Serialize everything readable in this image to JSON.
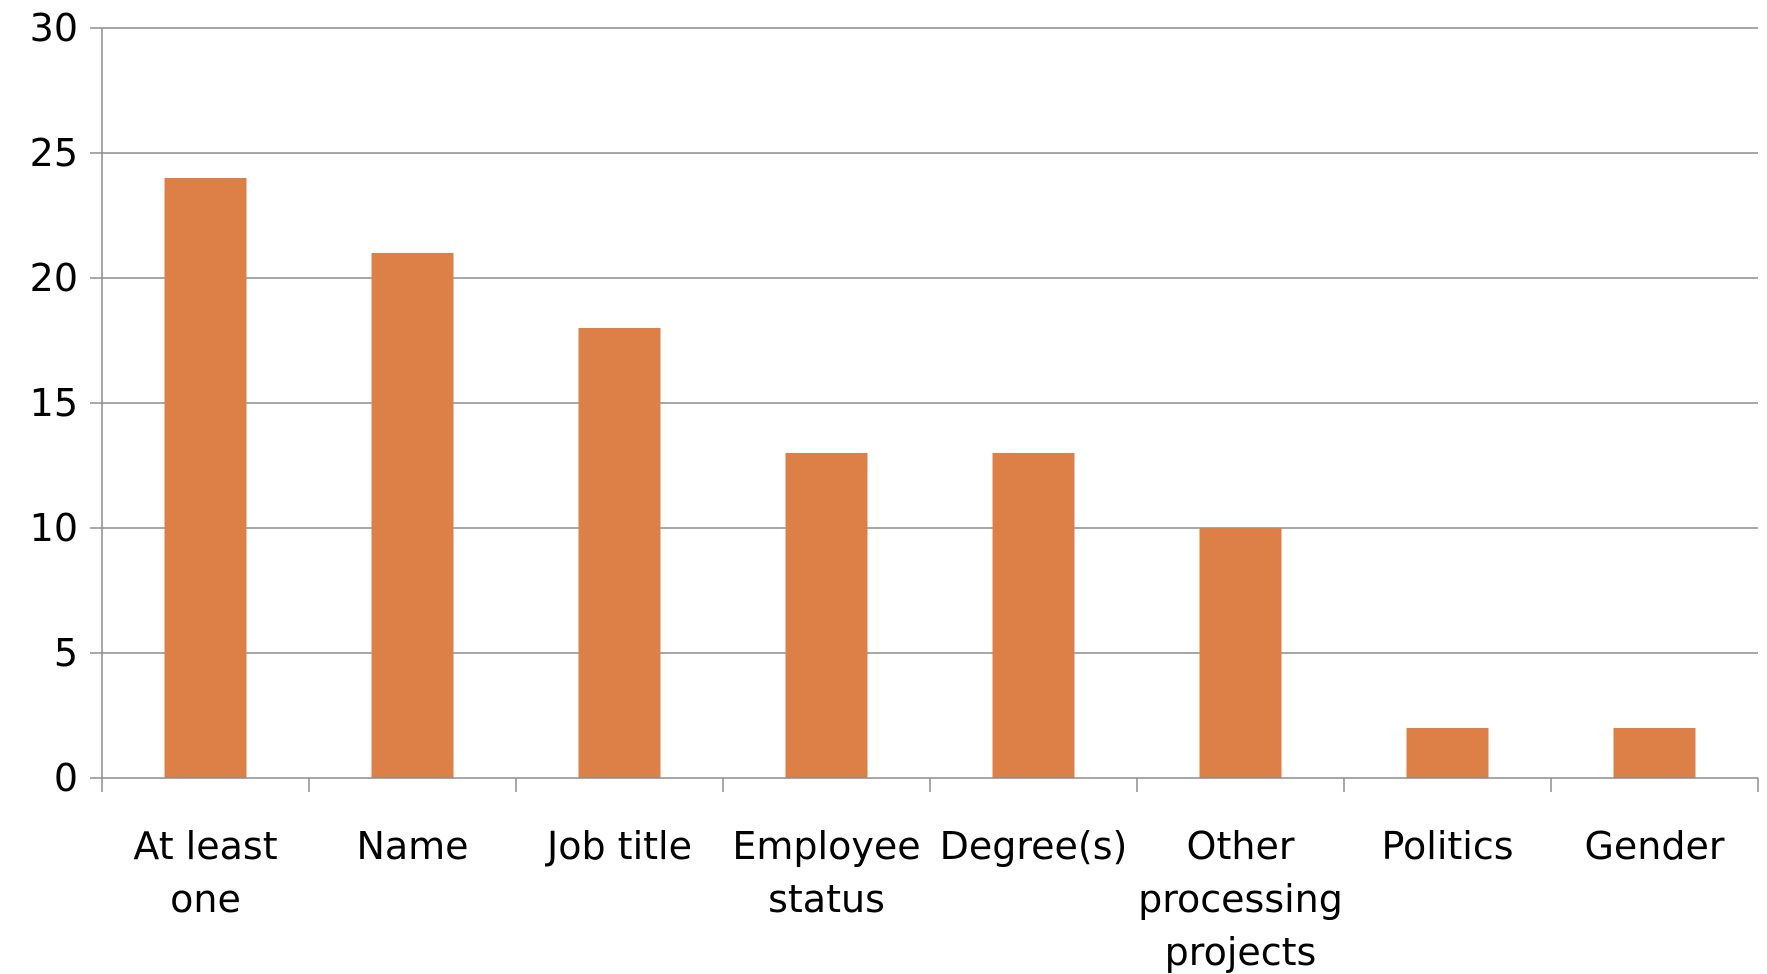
{
  "chart_data": {
    "type": "bar",
    "title": "",
    "xlabel": "",
    "ylabel": "",
    "categories": [
      "At least one",
      "Name",
      "Job title",
      "Employee status",
      "Degree(s)",
      "Other processing projects",
      "Politics",
      "Gender"
    ],
    "category_lines": [
      [
        "At least",
        "one"
      ],
      [
        "Name"
      ],
      [
        "Job title"
      ],
      [
        "Employee",
        "status"
      ],
      [
        "Degree(s)"
      ],
      [
        "Other",
        "processing",
        "projects"
      ],
      [
        "Politics"
      ],
      [
        "Gender"
      ]
    ],
    "values": [
      24,
      21,
      18,
      13,
      13,
      10,
      2,
      2
    ],
    "ylim": [
      0,
      30
    ],
    "yticks": [
      0,
      5,
      10,
      15,
      20,
      25,
      30
    ],
    "grid": true,
    "legend": "none",
    "colors": {
      "bar": "#dd8047",
      "grid": "#8c8c8c",
      "axis": "#8c8c8c",
      "text": "#000000"
    }
  }
}
